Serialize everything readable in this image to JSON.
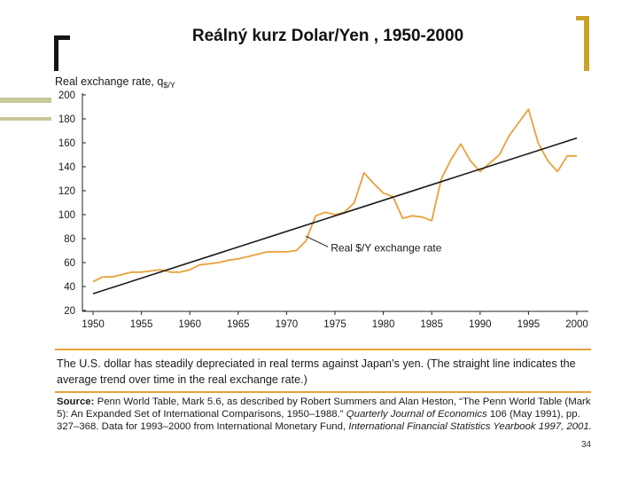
{
  "title": "Reálný kurz Dolar/Yen , 1950-2000",
  "caption": "The U.S. dollar has steadily depreciated in real terms against Japan’s yen. (The straight line indicates the average trend over time in the real exchange rate.)",
  "source": {
    "label": "Source:",
    "text_1": "Penn World Table, Mark 5.6, as described by Robert Summers and Alan Heston, “The Penn World Table (Mark 5): An Expanded Set of International Comparisons, 1950–1988.” ",
    "journal": "Quarterly Journal of Economics",
    "text_2": " 106 (May 1991), pp. 327–368. Data for 1993–2000 from International Monetary Fund, ",
    "yearbook": "International Financial Statistics Yearbook 1997, 2001."
  },
  "page_number": "34",
  "colors": {
    "series": "#e8a13a",
    "trend": "#1a1a1a",
    "rule": "#e8a13a",
    "accent_gold": "#c9a227"
  },
  "chart_data": {
    "type": "line",
    "title": "",
    "ylabel": "Real exchange rate, q",
    "ylabel_sub": "$/Y",
    "xlabel": "",
    "xlim": [
      1950,
      2000
    ],
    "ylim": [
      20,
      200
    ],
    "x_ticks": [
      "1950",
      "1955",
      "1960",
      "1965",
      "1970",
      "1975",
      "1980",
      "1985",
      "1990",
      "1995",
      "2000"
    ],
    "y_ticks": [
      "20",
      "40",
      "60",
      "80",
      "100",
      "120",
      "140",
      "160",
      "180",
      "200"
    ],
    "grid": false,
    "series": [
      {
        "name": "Real $/Y exchange rate",
        "x": [
          1950,
          1951,
          1952,
          1953,
          1954,
          1955,
          1956,
          1957,
          1958,
          1959,
          1960,
          1961,
          1962,
          1963,
          1964,
          1965,
          1966,
          1967,
          1968,
          1969,
          1970,
          1971,
          1972,
          1973,
          1974,
          1975,
          1976,
          1977,
          1978,
          1979,
          1980,
          1981,
          1982,
          1983,
          1984,
          1985,
          1986,
          1987,
          1988,
          1989,
          1990,
          1991,
          1992,
          1993,
          1994,
          1995,
          1996,
          1997,
          1998,
          1999,
          2000
        ],
        "values": [
          44,
          48,
          48,
          50,
          52,
          52,
          53,
          54,
          52,
          52,
          54,
          58,
          59,
          60,
          62,
          63,
          65,
          67,
          69,
          69,
          69,
          70,
          78,
          99,
          102,
          100,
          102,
          110,
          135,
          126,
          118,
          115,
          97,
          99,
          98,
          95,
          130,
          146,
          159,
          145,
          136,
          143,
          150,
          166,
          177,
          188,
          160,
          145,
          136,
          149,
          149
        ]
      },
      {
        "name": "Trend",
        "x": [
          1950,
          2000
        ],
        "values": [
          34,
          164
        ]
      }
    ],
    "annotations": [
      {
        "text": "Real $/Y exchange rate",
        "x": 1972,
        "y": 82
      }
    ]
  }
}
